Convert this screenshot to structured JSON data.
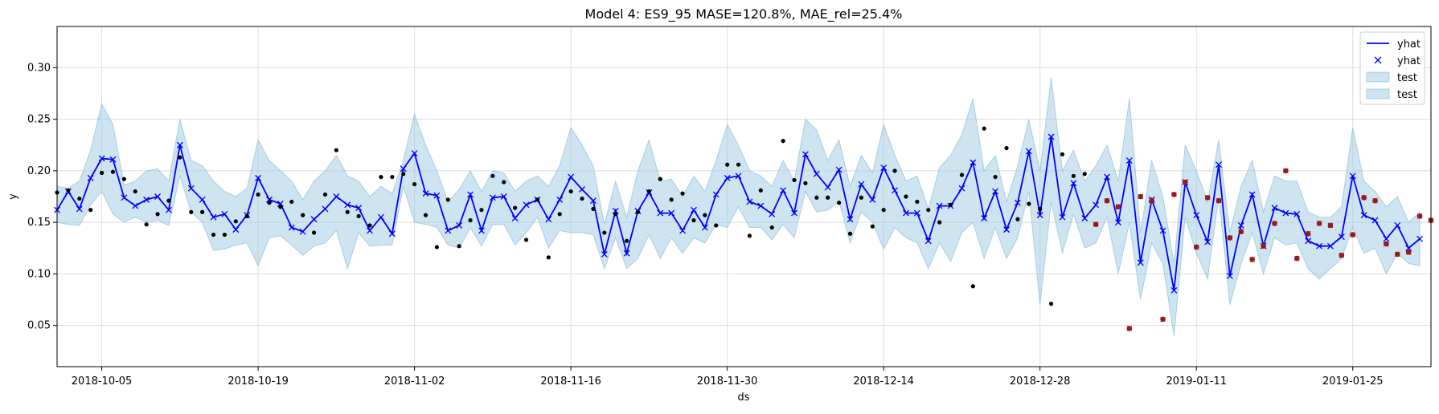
{
  "chart_data": {
    "type": "line",
    "title": "Model 4: ES9_95 MASE=120.8%, MAE_rel=25.4%",
    "xlabel": "ds",
    "ylabel": "y",
    "x_range": [
      "2018-10-01",
      "2019-02-01"
    ],
    "ylim": [
      0.01,
      0.34
    ],
    "y_ticks": [
      0.05,
      0.1,
      0.15,
      0.2,
      0.25,
      0.3
    ],
    "y_tick_labels": [
      "0.05",
      "0.10",
      "0.15",
      "0.20",
      "0.25",
      "0.30"
    ],
    "x_ticks": [
      "2018-10-05",
      "2018-10-19",
      "2018-11-02",
      "2018-11-16",
      "2018-11-30",
      "2018-12-14",
      "2018-12-28",
      "2019-01-11",
      "2019-01-25"
    ],
    "grid": true,
    "legend_position": "top-right",
    "legend": [
      {
        "label": "yhat",
        "kind": "line"
      },
      {
        "label": "yhat",
        "kind": "marker"
      },
      {
        "label": "test",
        "kind": "patch"
      },
      {
        "label": "test",
        "kind": "patch"
      }
    ],
    "colors": {
      "yhat": "#0000ff",
      "band": "#9ecae1",
      "band_edge": "#6baed6",
      "actual": "#000000",
      "test": "#cc0000",
      "grid": "#dddddd"
    },
    "yhat": {
      "start": "2018-10-01",
      "step_days": 1,
      "values": [
        0.162,
        0.18,
        0.163,
        0.193,
        0.212,
        0.211,
        0.174,
        0.166,
        0.172,
        0.175,
        0.162,
        0.225,
        0.183,
        0.172,
        0.155,
        0.158,
        0.143,
        0.157,
        0.193,
        0.172,
        0.168,
        0.145,
        0.141,
        0.153,
        0.163,
        0.175,
        0.167,
        0.164,
        0.142,
        0.155,
        0.139,
        0.202,
        0.217,
        0.178,
        0.176,
        0.142,
        0.147,
        0.177,
        0.142,
        0.174,
        0.175,
        0.154,
        0.167,
        0.172,
        0.153,
        0.172,
        0.194,
        0.182,
        0.171,
        0.119,
        0.161,
        0.12,
        0.161,
        0.179,
        0.159,
        0.159,
        0.142,
        0.162,
        0.145,
        0.177,
        0.193,
        0.195,
        0.17,
        0.166,
        0.158,
        0.181,
        0.159,
        0.216,
        0.197,
        0.184,
        0.201,
        0.153,
        0.187,
        0.172,
        0.203,
        0.181,
        0.159,
        0.159,
        0.132,
        0.166,
        0.166,
        0.183,
        0.208,
        0.154,
        0.18,
        0.143,
        0.169,
        0.219,
        0.157,
        0.233,
        0.155,
        0.188,
        0.154,
        0.167,
        0.194,
        0.15,
        0.21,
        0.111,
        0.172,
        0.142,
        0.084,
        0.189,
        0.157,
        0.131,
        0.206,
        0.098,
        0.147,
        0.177,
        0.127,
        0.164,
        0.159,
        0.158,
        0.132,
        0.127,
        0.127,
        0.136,
        0.195,
        0.157,
        0.152,
        0.134,
        0.147,
        0.125,
        0.134
      ]
    },
    "band_upper": [
      0.185,
      0.183,
      0.19,
      0.22,
      0.265,
      0.245,
      0.186,
      0.19,
      0.2,
      0.202,
      0.19,
      0.25,
      0.21,
      0.205,
      0.19,
      0.18,
      0.175,
      0.183,
      0.23,
      0.21,
      0.2,
      0.19,
      0.172,
      0.19,
      0.2,
      0.215,
      0.195,
      0.19,
      0.175,
      0.185,
      0.178,
      0.21,
      0.255,
      0.225,
      0.2,
      0.17,
      0.182,
      0.2,
      0.18,
      0.2,
      0.198,
      0.18,
      0.19,
      0.195,
      0.185,
      0.205,
      0.242,
      0.225,
      0.205,
      0.148,
      0.19,
      0.155,
      0.2,
      0.23,
      0.19,
      0.192,
      0.175,
      0.195,
      0.18,
      0.21,
      0.245,
      0.225,
      0.2,
      0.195,
      0.185,
      0.21,
      0.19,
      0.25,
      0.24,
      0.21,
      0.23,
      0.185,
      0.215,
      0.198,
      0.245,
      0.215,
      0.19,
      0.195,
      0.163,
      0.203,
      0.215,
      0.235,
      0.27,
      0.2,
      0.215,
      0.17,
      0.205,
      0.25,
      0.2,
      0.29,
      0.2,
      0.22,
      0.19,
      0.205,
      0.225,
      0.19,
      0.27,
      0.14,
      0.21,
      0.175,
      0.11,
      0.225,
      0.2,
      0.17,
      0.23,
      0.14,
      0.185,
      0.21,
      0.16,
      0.195,
      0.19,
      0.19,
      0.16,
      0.155,
      0.155,
      0.165,
      0.242,
      0.19,
      0.18,
      0.165,
      0.175,
      0.15,
      0.16
    ],
    "band_lower": [
      0.15,
      0.148,
      0.147,
      0.167,
      0.18,
      0.158,
      0.15,
      0.155,
      0.15,
      0.152,
      0.147,
      0.195,
      0.16,
      0.15,
      0.123,
      0.124,
      0.128,
      0.13,
      0.108,
      0.135,
      0.137,
      0.128,
      0.118,
      0.127,
      0.13,
      0.142,
      0.105,
      0.14,
      0.127,
      0.128,
      0.128,
      0.185,
      0.15,
      0.148,
      0.145,
      0.128,
      0.125,
      0.145,
      0.127,
      0.148,
      0.148,
      0.128,
      0.14,
      0.155,
      0.125,
      0.142,
      0.14,
      0.14,
      0.138,
      0.105,
      0.135,
      0.105,
      0.115,
      0.138,
      0.115,
      0.135,
      0.12,
      0.135,
      0.13,
      0.148,
      0.145,
      0.165,
      0.145,
      0.145,
      0.133,
      0.148,
      0.135,
      0.18,
      0.16,
      0.162,
      0.17,
      0.13,
      0.16,
      0.15,
      0.124,
      0.145,
      0.135,
      0.13,
      0.105,
      0.13,
      0.112,
      0.14,
      0.15,
      0.115,
      0.145,
      0.115,
      0.135,
      0.18,
      0.07,
      0.17,
      0.12,
      0.158,
      0.125,
      0.13,
      0.155,
      0.1,
      0.15,
      0.075,
      0.13,
      0.11,
      0.04,
      0.155,
      0.12,
      0.095,
      0.175,
      0.07,
      0.11,
      0.14,
      0.1,
      0.135,
      0.128,
      0.13,
      0.105,
      0.095,
      0.105,
      0.115,
      0.145,
      0.12,
      0.125,
      0.1,
      0.12,
      0.11,
      0.108
    ],
    "actual_points": [
      {
        "x": "2018-10-01",
        "y": 0.179
      },
      {
        "x": "2018-10-02",
        "y": 0.181
      },
      {
        "x": "2018-10-03",
        "y": 0.173
      },
      {
        "x": "2018-10-04",
        "y": 0.162
      },
      {
        "x": "2018-10-05",
        "y": 0.198
      },
      {
        "x": "2018-10-06",
        "y": 0.199
      },
      {
        "x": "2018-10-07",
        "y": 0.192
      },
      {
        "x": "2018-10-08",
        "y": 0.18
      },
      {
        "x": "2018-10-09",
        "y": 0.148
      },
      {
        "x": "2018-10-10",
        "y": 0.158
      },
      {
        "x": "2018-10-11",
        "y": 0.171
      },
      {
        "x": "2018-10-12",
        "y": 0.213
      },
      {
        "x": "2018-10-13",
        "y": 0.16
      },
      {
        "x": "2018-10-14",
        "y": 0.16
      },
      {
        "x": "2018-10-15",
        "y": 0.138
      },
      {
        "x": "2018-10-16",
        "y": 0.138
      },
      {
        "x": "2018-10-17",
        "y": 0.151
      },
      {
        "x": "2018-10-18",
        "y": 0.156
      },
      {
        "x": "2018-10-19",
        "y": 0.177
      },
      {
        "x": "2018-10-20",
        "y": 0.169
      },
      {
        "x": "2018-10-21",
        "y": 0.165
      },
      {
        "x": "2018-10-22",
        "y": 0.17
      },
      {
        "x": "2018-10-23",
        "y": 0.157
      },
      {
        "x": "2018-10-24",
        "y": 0.14
      },
      {
        "x": "2018-10-25",
        "y": 0.177
      },
      {
        "x": "2018-10-26",
        "y": 0.22
      },
      {
        "x": "2018-10-27",
        "y": 0.16
      },
      {
        "x": "2018-10-28",
        "y": 0.156
      },
      {
        "x": "2018-10-29",
        "y": 0.147
      },
      {
        "x": "2018-10-30",
        "y": 0.194
      },
      {
        "x": "2018-10-31",
        "y": 0.194
      },
      {
        "x": "2018-11-01",
        "y": 0.197
      },
      {
        "x": "2018-11-02",
        "y": 0.187
      },
      {
        "x": "2018-11-03",
        "y": 0.157
      },
      {
        "x": "2018-11-04",
        "y": 0.126
      },
      {
        "x": "2018-11-05",
        "y": 0.172
      },
      {
        "x": "2018-11-06",
        "y": 0.127
      },
      {
        "x": "2018-11-07",
        "y": 0.152
      },
      {
        "x": "2018-11-08",
        "y": 0.162
      },
      {
        "x": "2018-11-09",
        "y": 0.195
      },
      {
        "x": "2018-11-10",
        "y": 0.189
      },
      {
        "x": "2018-11-11",
        "y": 0.164
      },
      {
        "x": "2018-11-12",
        "y": 0.133
      },
      {
        "x": "2018-11-13",
        "y": 0.172
      },
      {
        "x": "2018-11-14",
        "y": 0.116
      },
      {
        "x": "2018-11-15",
        "y": 0.158
      },
      {
        "x": "2018-11-16",
        "y": 0.18
      },
      {
        "x": "2018-11-17",
        "y": 0.173
      },
      {
        "x": "2018-11-18",
        "y": 0.163
      },
      {
        "x": "2018-11-19",
        "y": 0.14
      },
      {
        "x": "2018-11-20",
        "y": 0.158
      },
      {
        "x": "2018-11-21",
        "y": 0.132
      },
      {
        "x": "2018-11-22",
        "y": 0.16
      },
      {
        "x": "2018-11-23",
        "y": 0.18
      },
      {
        "x": "2018-11-24",
        "y": 0.192
      },
      {
        "x": "2018-11-25",
        "y": 0.172
      },
      {
        "x": "2018-11-26",
        "y": 0.178
      },
      {
        "x": "2018-11-27",
        "y": 0.152
      },
      {
        "x": "2018-11-28",
        "y": 0.157
      },
      {
        "x": "2018-11-29",
        "y": 0.147
      },
      {
        "x": "2018-11-30",
        "y": 0.206
      },
      {
        "x": "2018-12-01",
        "y": 0.206
      },
      {
        "x": "2018-12-02",
        "y": 0.137
      },
      {
        "x": "2018-12-03",
        "y": 0.181
      },
      {
        "x": "2018-12-04",
        "y": 0.145
      },
      {
        "x": "2018-12-05",
        "y": 0.229
      },
      {
        "x": "2018-12-06",
        "y": 0.191
      },
      {
        "x": "2018-12-07",
        "y": 0.188
      },
      {
        "x": "2018-12-08",
        "y": 0.174
      },
      {
        "x": "2018-12-09",
        "y": 0.174
      },
      {
        "x": "2018-12-10",
        "y": 0.169
      },
      {
        "x": "2018-12-11",
        "y": 0.139
      },
      {
        "x": "2018-12-12",
        "y": 0.174
      },
      {
        "x": "2018-12-13",
        "y": 0.146
      },
      {
        "x": "2018-12-14",
        "y": 0.162
      },
      {
        "x": "2018-12-15",
        "y": 0.2
      },
      {
        "x": "2018-12-16",
        "y": 0.175
      },
      {
        "x": "2018-12-17",
        "y": 0.17
      },
      {
        "x": "2018-12-18",
        "y": 0.162
      },
      {
        "x": "2018-12-19",
        "y": 0.15
      },
      {
        "x": "2018-12-20",
        "y": 0.167
      },
      {
        "x": "2018-12-21",
        "y": 0.196
      },
      {
        "x": "2018-12-22",
        "y": 0.088
      },
      {
        "x": "2018-12-23",
        "y": 0.241
      },
      {
        "x": "2018-12-24",
        "y": 0.194
      },
      {
        "x": "2018-12-25",
        "y": 0.222
      },
      {
        "x": "2018-12-26",
        "y": 0.153
      },
      {
        "x": "2018-12-27",
        "y": 0.168
      },
      {
        "x": "2018-12-28",
        "y": 0.163
      },
      {
        "x": "2018-12-29",
        "y": 0.071
      },
      {
        "x": "2018-12-30",
        "y": 0.216
      },
      {
        "x": "2018-12-31",
        "y": 0.195
      },
      {
        "x": "2019-01-01",
        "y": 0.197
      }
    ],
    "test_points": [
      {
        "x": "2019-01-02",
        "y": 0.148
      },
      {
        "x": "2019-01-03",
        "y": 0.171
      },
      {
        "x": "2019-01-04",
        "y": 0.165
      },
      {
        "x": "2019-01-05",
        "y": 0.047
      },
      {
        "x": "2019-01-06",
        "y": 0.175
      },
      {
        "x": "2019-01-07",
        "y": 0.171
      },
      {
        "x": "2019-01-08",
        "y": 0.056
      },
      {
        "x": "2019-01-09",
        "y": 0.177
      },
      {
        "x": "2019-01-10",
        "y": 0.189
      },
      {
        "x": "2019-01-11",
        "y": 0.126
      },
      {
        "x": "2019-01-12",
        "y": 0.174
      },
      {
        "x": "2019-01-13",
        "y": 0.171
      },
      {
        "x": "2019-01-14",
        "y": 0.135
      },
      {
        "x": "2019-01-15",
        "y": 0.141
      },
      {
        "x": "2019-01-16",
        "y": 0.114
      },
      {
        "x": "2019-01-17",
        "y": 0.127
      },
      {
        "x": "2019-01-18",
        "y": 0.149
      },
      {
        "x": "2019-01-19",
        "y": 0.2
      },
      {
        "x": "2019-01-20",
        "y": 0.115
      },
      {
        "x": "2019-01-21",
        "y": 0.139
      },
      {
        "x": "2019-01-22",
        "y": 0.149
      },
      {
        "x": "2019-01-23",
        "y": 0.147
      },
      {
        "x": "2019-01-24",
        "y": 0.118
      },
      {
        "x": "2019-01-25",
        "y": 0.138
      },
      {
        "x": "2019-01-26",
        "y": 0.174
      },
      {
        "x": "2019-01-27",
        "y": 0.171
      },
      {
        "x": "2019-01-28",
        "y": 0.129
      },
      {
        "x": "2019-01-29",
        "y": 0.119
      },
      {
        "x": "2019-01-30",
        "y": 0.121
      },
      {
        "x": "2019-01-31",
        "y": 0.156
      },
      {
        "x": "2019-02-01",
        "y": 0.152
      }
    ]
  }
}
